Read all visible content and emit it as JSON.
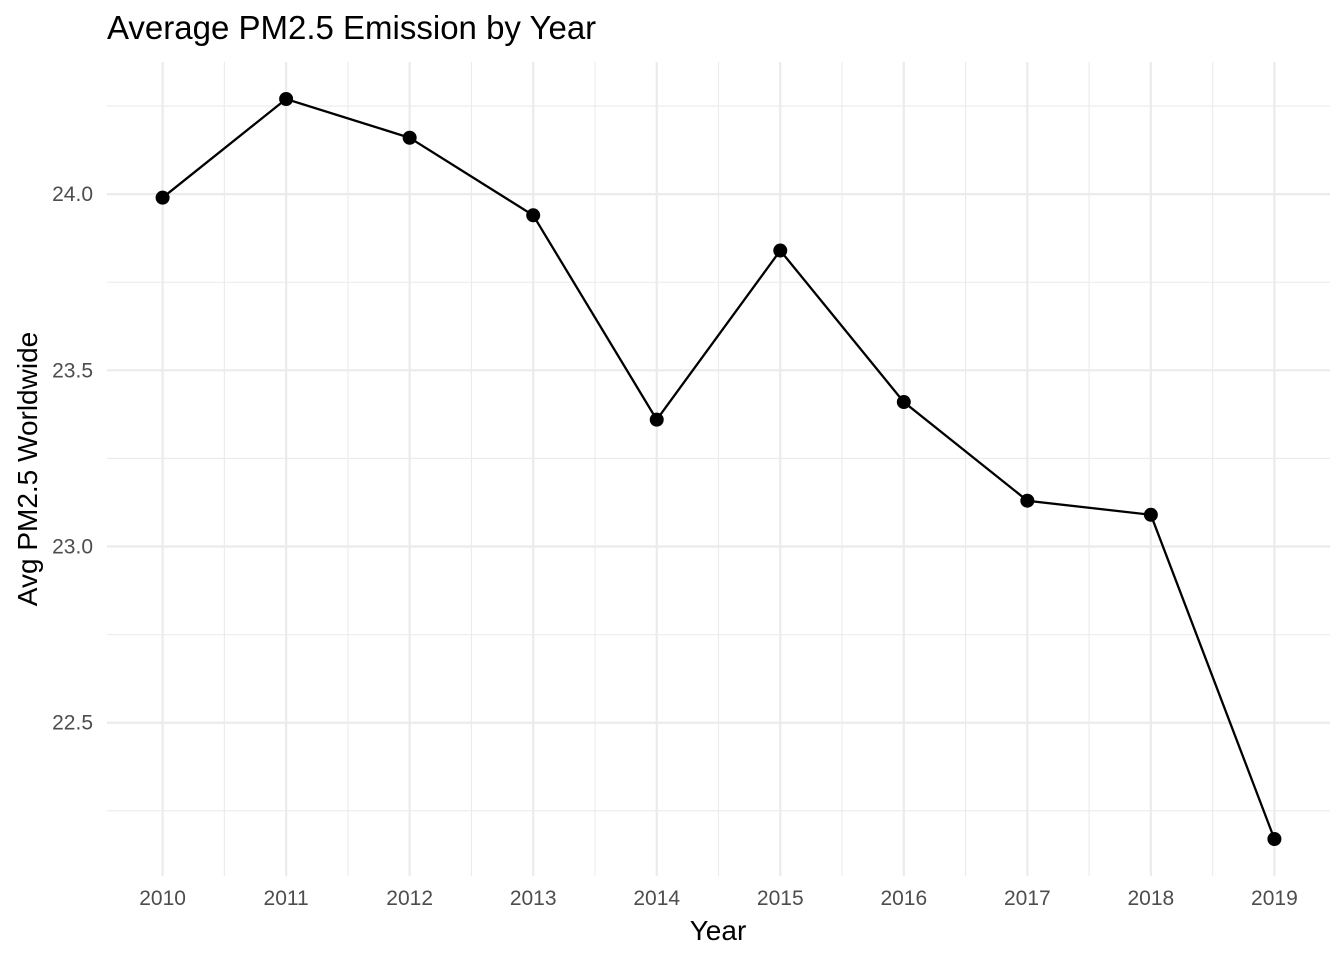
{
  "chart_data": {
    "type": "line",
    "title": "Average PM2.5 Emission by Year",
    "xlabel": "Year",
    "ylabel": "Avg PM2.5 Worldwide",
    "x": [
      2010,
      2011,
      2012,
      2013,
      2014,
      2015,
      2016,
      2017,
      2018,
      2019
    ],
    "y": [
      23.99,
      24.27,
      24.16,
      23.94,
      23.36,
      23.84,
      23.41,
      23.13,
      23.09,
      22.17
    ],
    "x_ticks": [
      "2010",
      "2011",
      "2012",
      "2013",
      "2014",
      "2015",
      "2016",
      "2017",
      "2018",
      "2019"
    ],
    "y_ticks": [
      "22.5",
      "23.0",
      "23.5",
      "24.0"
    ],
    "y_tick_values": [
      22.5,
      23.0,
      23.5,
      24.0
    ],
    "y_minor_values": [
      22.25,
      22.75,
      23.25,
      23.75,
      24.25
    ],
    "xlim": [
      2009.55,
      2019.45
    ],
    "ylim": [
      22.065,
      24.375
    ],
    "grid": true,
    "legend": "none",
    "colors": {
      "line": "#000000",
      "point": "#000000",
      "grid": "#ebebeb",
      "tick_text": "#4d4d4d",
      "background": "#ffffff"
    }
  }
}
